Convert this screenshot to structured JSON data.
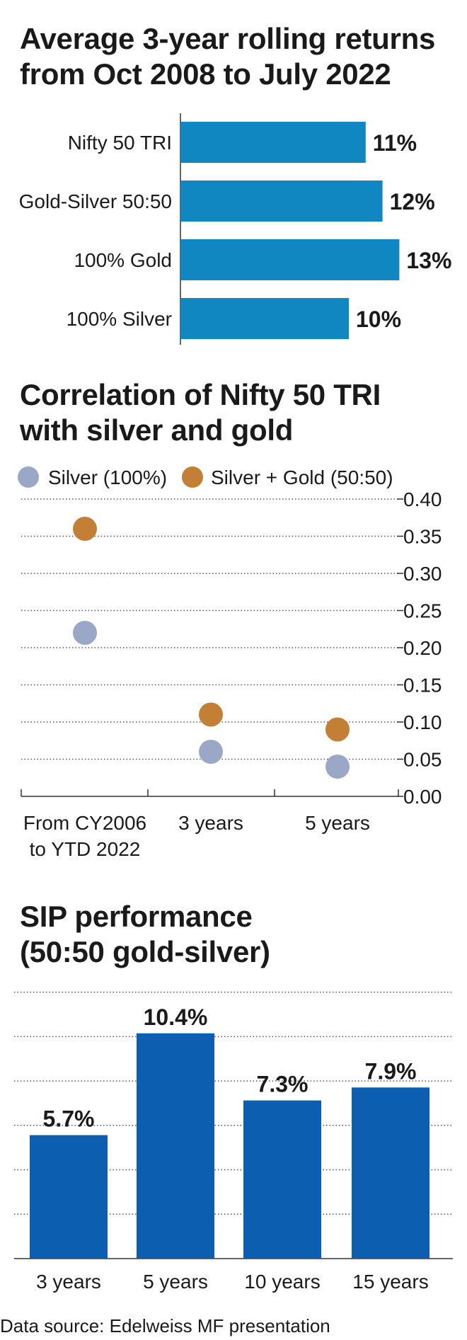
{
  "chart_data": [
    {
      "type": "bar",
      "orientation": "horizontal",
      "title_lines": [
        "Average 3-year rolling returns",
        "from Oct 2008 to July 2022"
      ],
      "categories": [
        "Nifty 50 TRI",
        "Gold-Silver 50:50",
        "100% Gold",
        "100% Silver"
      ],
      "values": [
        11,
        12,
        13,
        10
      ],
      "value_labels": [
        "11%",
        "12%",
        "13%",
        "10%"
      ],
      "color": "#1187c1"
    },
    {
      "type": "scatter",
      "title_lines": [
        "Correlation of Nifty 50 TRI",
        "with silver and gold"
      ],
      "categories": [
        "From CY2006 to YTD 2022",
        "3 years",
        "5 years"
      ],
      "category_lines": [
        [
          "From CY2006",
          "to YTD 2022"
        ],
        [
          "3 years"
        ],
        [
          "5 years"
        ]
      ],
      "series": [
        {
          "name": "Silver (100%)",
          "color": "#9ba7c7",
          "values": [
            0.22,
            0.06,
            0.04
          ]
        },
        {
          "name": "Silver + Gold (50:50)",
          "color": "#c27f35",
          "values": [
            0.36,
            0.11,
            0.09
          ]
        }
      ],
      "ylim": [
        0,
        0.4
      ],
      "yticks": [
        "0.00",
        "0.05",
        "0.10",
        "0.15",
        "0.20",
        "0.25",
        "0.30",
        "0.35",
        "0.40"
      ],
      "grid": true,
      "legend": "top-left"
    },
    {
      "type": "bar",
      "title_lines": [
        "SIP performance",
        "(50:50 gold-silver)"
      ],
      "categories": [
        "3 years",
        "5 years",
        "10 years",
        "15 years"
      ],
      "values": [
        5.7,
        10.4,
        7.3,
        7.9
      ],
      "value_labels": [
        "5.7%",
        "10.4%",
        "7.3%",
        "7.9%"
      ],
      "ylim": [
        0,
        12.5
      ],
      "grid": true,
      "color": "#0c5fb0"
    }
  ],
  "source": "Data source: Edelweiss MF presentation"
}
